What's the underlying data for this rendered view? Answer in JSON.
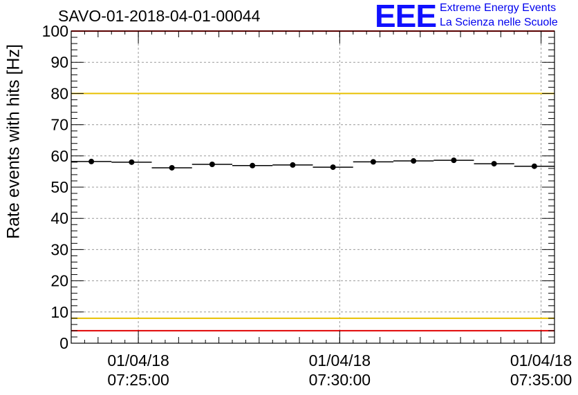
{
  "chart_data": {
    "type": "scatter",
    "title": "SAVO-01-2018-04-01-00044",
    "ylabel": "Rate events with hits [Hz]",
    "xlabel": "",
    "ylim": [
      0,
      100
    ],
    "y_ticks": [
      "0",
      "10",
      "20",
      "30",
      "40",
      "50",
      "60",
      "70",
      "80",
      "90",
      "100"
    ],
    "x_ticks": [
      {
        "date": "01/04/18",
        "time": "07:25:00"
      },
      {
        "date": "01/04/18",
        "time": "07:30:00"
      },
      {
        "date": "01/04/18",
        "time": "07:35:00"
      }
    ],
    "x_range": [
      "07:23:20",
      "07:35:20"
    ],
    "grid": true,
    "bin_width_seconds": 60,
    "points": [
      {
        "t": "07:23:50",
        "y": 58.2
      },
      {
        "t": "07:24:50",
        "y": 58.0
      },
      {
        "t": "07:25:50",
        "y": 56.2
      },
      {
        "t": "07:26:50",
        "y": 57.3
      },
      {
        "t": "07:27:50",
        "y": 56.9
      },
      {
        "t": "07:28:50",
        "y": 57.1
      },
      {
        "t": "07:29:50",
        "y": 56.4
      },
      {
        "t": "07:30:50",
        "y": 58.1
      },
      {
        "t": "07:31:50",
        "y": 58.4
      },
      {
        "t": "07:32:50",
        "y": 58.6
      },
      {
        "t": "07:33:50",
        "y": 57.5
      },
      {
        "t": "07:34:50",
        "y": 56.7
      }
    ],
    "reference_lines": [
      {
        "y": 100,
        "color": "#e00000"
      },
      {
        "y": 80,
        "color": "#e8c000"
      },
      {
        "y": 8,
        "color": "#e8c000"
      },
      {
        "y": 4,
        "color": "#e00000"
      }
    ]
  },
  "logo": {
    "mark": "EEE",
    "line1": "Extreme Energy Events",
    "line2": "La Scienza nelle Scuole",
    "color": "#1010ff"
  }
}
